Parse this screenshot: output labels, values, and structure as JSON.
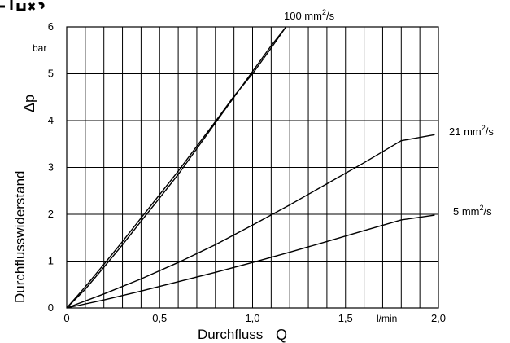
{
  "chart_data": {
    "type": "line",
    "title": "",
    "xlabel": "Durchfluss",
    "xsymbol": "Q",
    "xunit": "l/min",
    "ylabel": "Durchflusswiderstand",
    "ysymbol": "Δp",
    "yunit": "bar",
    "xlim": [
      0,
      2.0
    ],
    "ylim": [
      0,
      6
    ],
    "grid": true,
    "x_ticks": [
      {
        "value": 0,
        "label": "0"
      },
      {
        "value": 0.5,
        "label": "0,5"
      },
      {
        "value": 1.0,
        "label": "1,0"
      },
      {
        "value": 1.5,
        "label": "1,5"
      },
      {
        "value": 2.0,
        "label": "2,0"
      }
    ],
    "y_ticks": [
      {
        "value": 0,
        "label": "0"
      },
      {
        "value": 1,
        "label": "1"
      },
      {
        "value": 2,
        "label": "2"
      },
      {
        "value": 3,
        "label": "3"
      },
      {
        "value": 4,
        "label": "4"
      },
      {
        "value": 5,
        "label": "5"
      },
      {
        "value": 6,
        "label": "6"
      }
    ],
    "series": [
      {
        "name": "100 mm²/s",
        "points": [
          [
            0,
            0
          ],
          [
            0.1,
            0.4
          ],
          [
            0.2,
            0.87
          ],
          [
            0.3,
            1.35
          ],
          [
            0.4,
            1.85
          ],
          [
            0.5,
            2.35
          ],
          [
            0.6,
            2.85
          ],
          [
            0.7,
            3.4
          ],
          [
            0.8,
            3.95
          ],
          [
            0.9,
            4.5
          ],
          [
            1.0,
            5.05
          ],
          [
            1.1,
            5.6
          ],
          [
            1.18,
            6.0
          ]
        ]
      },
      {
        "name": "100 mm²/s",
        "points": [
          [
            0,
            0
          ],
          [
            0.1,
            0.45
          ],
          [
            0.2,
            0.93
          ],
          [
            0.3,
            1.42
          ],
          [
            0.4,
            1.92
          ],
          [
            0.5,
            2.42
          ],
          [
            0.6,
            2.92
          ],
          [
            0.7,
            3.45
          ],
          [
            0.8,
            3.98
          ],
          [
            0.9,
            4.52
          ],
          [
            1.0,
            5.0
          ],
          [
            1.1,
            5.55
          ],
          [
            1.18,
            6.0
          ]
        ]
      },
      {
        "name": "21 mm²/s",
        "points": [
          [
            0,
            0
          ],
          [
            0.2,
            0.3
          ],
          [
            0.4,
            0.62
          ],
          [
            0.6,
            0.97
          ],
          [
            0.8,
            1.35
          ],
          [
            1.0,
            1.77
          ],
          [
            1.2,
            2.2
          ],
          [
            1.4,
            2.65
          ],
          [
            1.6,
            3.1
          ],
          [
            1.8,
            3.57
          ],
          [
            1.98,
            3.7
          ]
        ]
      },
      {
        "name": "5 mm²/s",
        "points": [
          [
            0,
            0
          ],
          [
            0.2,
            0.17
          ],
          [
            0.4,
            0.36
          ],
          [
            0.6,
            0.56
          ],
          [
            0.8,
            0.76
          ],
          [
            1.0,
            0.97
          ],
          [
            1.2,
            1.19
          ],
          [
            1.4,
            1.42
          ],
          [
            1.6,
            1.65
          ],
          [
            1.8,
            1.88
          ],
          [
            1.98,
            1.98
          ]
        ]
      }
    ],
    "curve_labels": {
      "c100": {
        "text": "100 mm",
        "sup": "2",
        "tail": "/s"
      },
      "c21": {
        "text": "21 mm",
        "sup": "2",
        "tail": "/s"
      },
      "c5": {
        "text": "5 mm",
        "sup": "2",
        "tail": "/s"
      }
    }
  }
}
